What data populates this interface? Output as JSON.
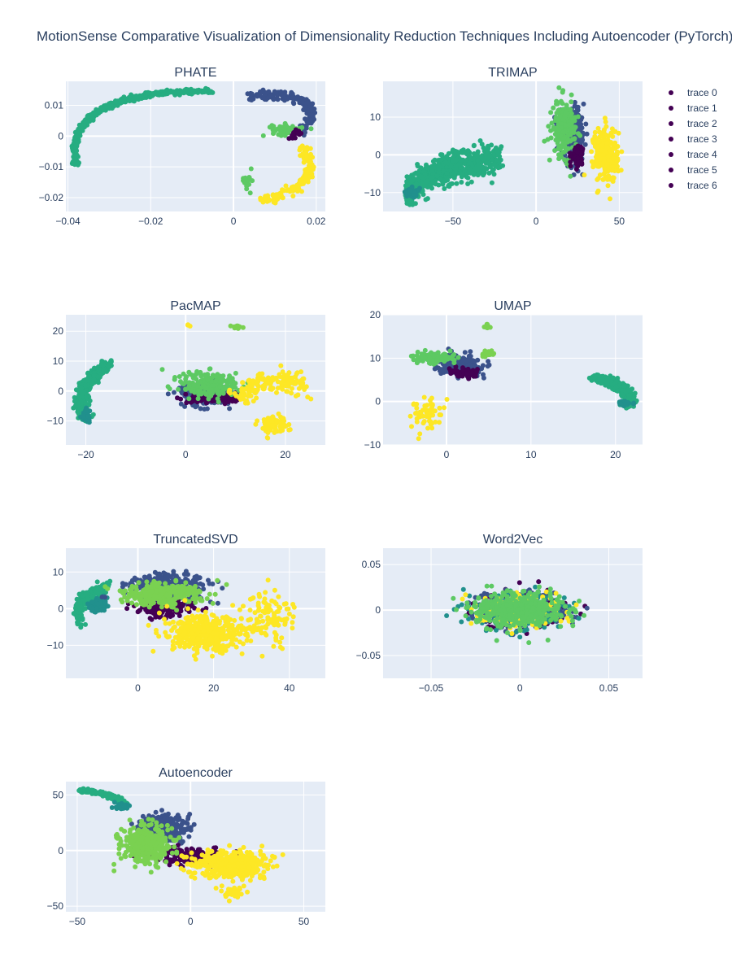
{
  "figure": {
    "title": "MotionSense Comparative Visualization of Dimensionality Reduction Techniques Including Autoencoder (PyTorch)"
  },
  "colors": {
    "plot_bg": "#e5ecf6",
    "grid": "#ffffff",
    "text": "#2a3f5f",
    "palette": [
      "#440154",
      "#3b528b",
      "#21908d",
      "#26ad81",
      "#5dc963",
      "#7ad151",
      "#fde725"
    ]
  },
  "legend": {
    "items": [
      "trace 0",
      "trace 1",
      "trace 2",
      "trace 3",
      "trace 4",
      "trace 5",
      "trace 6"
    ],
    "marker_color": "#440154"
  },
  "chart_data": [
    {
      "type": "scatter",
      "title": "PHATE",
      "xlabel": "",
      "ylabel": "",
      "xlim": [
        -0.0405,
        0.0222
      ],
      "ylim": [
        -0.0245,
        0.0178
      ],
      "xticks": [
        -0.04,
        -0.02,
        0,
        0.02
      ],
      "xtick_labels": [
        "−0.04",
        "−0.02",
        "0",
        "0.02"
      ],
      "yticks": [
        -0.02,
        -0.01,
        0,
        0.01
      ],
      "ytick_labels": [
        "−0.02",
        "−0.01",
        "0",
        "0.01"
      ],
      "grid": true,
      "clusters": [
        {
          "color": "#26ad81",
          "shape": "arc",
          "from": [
            -0.038,
            -0.0095
          ],
          "to": [
            -0.005,
            0.0145
          ],
          "bend": 0.22,
          "width": 0.0006,
          "n": 520
        },
        {
          "color": "#3b528b",
          "shape": "arc",
          "from": [
            0.003,
            0.013
          ],
          "to": [
            0.0165,
            0.0015
          ],
          "bend": 0.15,
          "width": 0.0012,
          "n": 180
        },
        {
          "color": "#5dc963",
          "shape": "blob",
          "center": [
            0.013,
            0.002
          ],
          "spread": [
            0.003,
            0.0015
          ],
          "n": 60
        },
        {
          "color": "#5dc963",
          "shape": "blob",
          "center": [
            0.0035,
            -0.0145
          ],
          "spread": [
            0.0012,
            0.0025
          ],
          "n": 15
        },
        {
          "color": "#440154",
          "shape": "blob",
          "center": [
            0.015,
            0.001
          ],
          "spread": [
            0.0015,
            0.0012
          ],
          "n": 15
        },
        {
          "color": "#fde725",
          "shape": "arc",
          "from": [
            0.007,
            -0.021
          ],
          "to": [
            0.0165,
            -0.004
          ],
          "bend": -0.1,
          "width": 0.0012,
          "n": 170
        }
      ]
    },
    {
      "type": "scatter",
      "title": "TRIMAP",
      "xlabel": "",
      "ylabel": "",
      "xlim": [
        -92,
        64
      ],
      "ylim": [
        -15,
        19.5
      ],
      "xticks": [
        -50,
        0,
        50
      ],
      "xtick_labels": [
        "−50",
        "0",
        "50"
      ],
      "yticks": [
        -10,
        0,
        10
      ],
      "ytick_labels": [
        "−10",
        "0",
        "10"
      ],
      "grid": true,
      "clusters": [
        {
          "color": "#26ad81",
          "shape": "arc",
          "from": [
            -78,
            -10
          ],
          "to": [
            -22,
            -1
          ],
          "bend": 0.05,
          "width": 2.8,
          "n": 650
        },
        {
          "color": "#21908d",
          "shape": "blob",
          "center": [
            -75,
            -10
          ],
          "spread": [
            4,
            1
          ],
          "n": 40
        },
        {
          "color": "#3b528b",
          "shape": "blob",
          "center": [
            22,
            5
          ],
          "spread": [
            6,
            5
          ],
          "n": 350
        },
        {
          "color": "#5dc963",
          "shape": "blob",
          "center": [
            17,
            7
          ],
          "spread": [
            6,
            6
          ],
          "n": 220
        },
        {
          "color": "#440154",
          "shape": "blob",
          "center": [
            25,
            0
          ],
          "spread": [
            3,
            2
          ],
          "n": 60
        },
        {
          "color": "#fde725",
          "shape": "blob",
          "center": [
            42,
            0
          ],
          "spread": [
            6,
            6
          ],
          "n": 260
        }
      ]
    },
    {
      "type": "scatter",
      "title": "PacMAP",
      "xlabel": "",
      "ylabel": "",
      "xlim": [
        -24,
        28
      ],
      "ylim": [
        -18,
        25.5
      ],
      "xticks": [
        -20,
        0,
        20
      ],
      "xtick_labels": [
        "−20",
        "0",
        "20"
      ],
      "yticks": [
        -10,
        0,
        10,
        20
      ],
      "ytick_labels": [
        "−10",
        "0",
        "10",
        "20"
      ],
      "grid": true,
      "clusters": [
        {
          "color": "#26ad81",
          "shape": "arc",
          "from": [
            -20,
            -9
          ],
          "to": [
            -15.5,
            9
          ],
          "bend": 0.05,
          "width": 1.2,
          "n": 420
        },
        {
          "color": "#21908d",
          "shape": "blob",
          "center": [
            -20,
            -8
          ],
          "spread": [
            0.6,
            1.5
          ],
          "n": 40
        },
        {
          "color": "#3b528b",
          "shape": "blob",
          "center": [
            4,
            -1
          ],
          "spread": [
            4,
            3
          ],
          "n": 300
        },
        {
          "color": "#440154",
          "shape": "blob",
          "center": [
            6,
            -2.5
          ],
          "spread": [
            4,
            1.2
          ],
          "n": 120
        },
        {
          "color": "#5dc963",
          "shape": "blob",
          "center": [
            5,
            2
          ],
          "spread": [
            5,
            4
          ],
          "n": 200
        },
        {
          "color": "#7ad151",
          "shape": "blob",
          "center": [
            10.5,
            21.5
          ],
          "spread": [
            1,
            0.5
          ],
          "n": 12
        },
        {
          "color": "#fde725",
          "shape": "arc",
          "from": [
            11,
            -3
          ],
          "to": [
            24.5,
            1.5
          ],
          "bend": 0.1,
          "width": 2.5,
          "n": 160
        },
        {
          "color": "#fde725",
          "shape": "blob",
          "center": [
            17.5,
            -11
          ],
          "spread": [
            2.5,
            2.5
          ],
          "n": 70
        },
        {
          "color": "#fde725",
          "shape": "blob",
          "center": [
            0.5,
            22
          ],
          "spread": [
            0.3,
            0.3
          ],
          "n": 3
        }
      ]
    },
    {
      "type": "scatter",
      "title": "UMAP",
      "xlabel": "",
      "ylabel": "",
      "xlim": [
        -7.5,
        23.2
      ],
      "ylim": [
        -10,
        20
      ],
      "xticks": [
        0,
        10,
        20
      ],
      "xtick_labels": [
        "0",
        "10",
        "20"
      ],
      "yticks": [
        -10,
        0,
        10,
        20
      ],
      "ytick_labels": [
        "−10",
        "0",
        "10",
        "20"
      ],
      "grid": true,
      "clusters": [
        {
          "color": "#26ad81",
          "shape": "arc",
          "from": [
            17.5,
            5.5
          ],
          "to": [
            21.5,
            -1
          ],
          "bend": 0.05,
          "width": 0.7,
          "n": 420
        },
        {
          "color": "#21908d",
          "shape": "blob",
          "center": [
            21,
            -0.5
          ],
          "spread": [
            0.6,
            0.5
          ],
          "n": 40
        },
        {
          "color": "#3b528b",
          "shape": "blob",
          "center": [
            1.5,
            8.5
          ],
          "spread": [
            1.8,
            1.8
          ],
          "n": 300
        },
        {
          "color": "#440154",
          "shape": "blob",
          "center": [
            2.2,
            6.5
          ],
          "spread": [
            1.5,
            0.8
          ],
          "n": 70
        },
        {
          "color": "#5dc963",
          "shape": "blob",
          "center": [
            -1.5,
            10
          ],
          "spread": [
            2,
            1
          ],
          "n": 120
        },
        {
          "color": "#7ad151",
          "shape": "blob",
          "center": [
            5,
            11
          ],
          "spread": [
            0.7,
            0.8
          ],
          "n": 20
        },
        {
          "color": "#7ad151",
          "shape": "blob",
          "center": [
            4.8,
            17.5
          ],
          "spread": [
            0.4,
            0.6
          ],
          "n": 8
        },
        {
          "color": "#fde725",
          "shape": "blob",
          "center": [
            -2.5,
            -3
          ],
          "spread": [
            1.5,
            3
          ],
          "n": 60
        }
      ]
    },
    {
      "type": "scatter",
      "title": "TruncatedSVD",
      "xlabel": "",
      "ylabel": "",
      "xlim": [
        -19,
        49.5
      ],
      "ylim": [
        -19,
        16.5
      ],
      "xticks": [
        0,
        20,
        40
      ],
      "xtick_labels": [
        "0",
        "20",
        "40"
      ],
      "yticks": [
        -10,
        0,
        10
      ],
      "ytick_labels": [
        "−10",
        "0",
        "10"
      ],
      "grid": true,
      "clusters": [
        {
          "color": "#26ad81",
          "shape": "arc",
          "from": [
            -15,
            -3
          ],
          "to": [
            -8,
            6
          ],
          "bend": 0.05,
          "width": 1.1,
          "n": 260
        },
        {
          "color": "#21908d",
          "shape": "blob",
          "center": [
            -10,
            1
          ],
          "spread": [
            2,
            1.5
          ],
          "n": 60
        },
        {
          "color": "#3b528b",
          "shape": "blob",
          "center": [
            8,
            6
          ],
          "spread": [
            9,
            3
          ],
          "n": 350
        },
        {
          "color": "#440154",
          "shape": "blob",
          "center": [
            7,
            0
          ],
          "spread": [
            6,
            2
          ],
          "n": 160
        },
        {
          "color": "#7ad151",
          "shape": "blob",
          "center": [
            6,
            4
          ],
          "spread": [
            9,
            2.5
          ],
          "n": 300
        },
        {
          "color": "#fde725",
          "shape": "blob",
          "center": [
            18,
            -7
          ],
          "spread": [
            8,
            4
          ],
          "n": 420
        },
        {
          "color": "#fde725",
          "shape": "blob",
          "center": [
            34,
            -2
          ],
          "spread": [
            6,
            6
          ],
          "n": 120
        }
      ]
    },
    {
      "type": "scatter",
      "title": "Word2Vec",
      "xlabel": "",
      "ylabel": "",
      "xlim": [
        -0.077,
        0.069
      ],
      "ylim": [
        -0.075,
        0.068
      ],
      "xticks": [
        -0.05,
        0,
        0.05
      ],
      "xtick_labels": [
        "−0.05",
        "0",
        "0.05"
      ],
      "yticks": [
        -0.05,
        0,
        0.05
      ],
      "ytick_labels": [
        "−0.05",
        "0",
        "0.05"
      ],
      "grid": true,
      "clusters": [
        {
          "color": "#440154",
          "shape": "blob",
          "center": [
            0,
            0
          ],
          "spread": [
            0.022,
            0.016
          ],
          "n": 180
        },
        {
          "color": "#3b528b",
          "shape": "blob",
          "center": [
            0,
            0
          ],
          "spread": [
            0.022,
            0.016
          ],
          "n": 280
        },
        {
          "color": "#21908d",
          "shape": "blob",
          "center": [
            0,
            0
          ],
          "spread": [
            0.022,
            0.016
          ],
          "n": 200
        },
        {
          "color": "#fde725",
          "shape": "blob",
          "center": [
            0,
            0
          ],
          "spread": [
            0.018,
            0.014
          ],
          "n": 200
        },
        {
          "color": "#5dc963",
          "shape": "blob",
          "center": [
            0,
            0
          ],
          "spread": [
            0.02,
            0.015
          ],
          "n": 500
        }
      ]
    },
    {
      "type": "scatter",
      "title": "Autoencoder",
      "xlabel": "",
      "ylabel": "",
      "xlim": [
        -55,
        59.5
      ],
      "ylim": [
        -55,
        62
      ],
      "xticks": [
        -50,
        0,
        50
      ],
      "xtick_labels": [
        "−50",
        "0",
        "50"
      ],
      "yticks": [
        -50,
        0,
        50
      ],
      "ytick_labels": [
        "−50",
        "0",
        "50"
      ],
      "grid": true,
      "clusters": [
        {
          "color": "#26ad81",
          "shape": "arc",
          "from": [
            -49,
            54
          ],
          "to": [
            -28,
            40
          ],
          "bend": 0.03,
          "width": 1.3,
          "n": 200
        },
        {
          "color": "#21908d",
          "shape": "blob",
          "center": [
            -30,
            40
          ],
          "spread": [
            3,
            2
          ],
          "n": 40
        },
        {
          "color": "#3b528b",
          "shape": "blob",
          "center": [
            -12,
            20
          ],
          "spread": [
            8,
            9
          ],
          "n": 380
        },
        {
          "color": "#440154",
          "shape": "blob",
          "center": [
            0,
            -5
          ],
          "spread": [
            12,
            6
          ],
          "n": 150
        },
        {
          "color": "#7ad151",
          "shape": "blob",
          "center": [
            -20,
            5
          ],
          "spread": [
            9,
            14
          ],
          "n": 360
        },
        {
          "color": "#fde725",
          "shape": "blob",
          "center": [
            18,
            -12
          ],
          "spread": [
            14,
            10
          ],
          "n": 420
        },
        {
          "color": "#fde725",
          "shape": "blob",
          "center": [
            20,
            -38
          ],
          "spread": [
            4,
            5
          ],
          "n": 40
        }
      ]
    }
  ]
}
